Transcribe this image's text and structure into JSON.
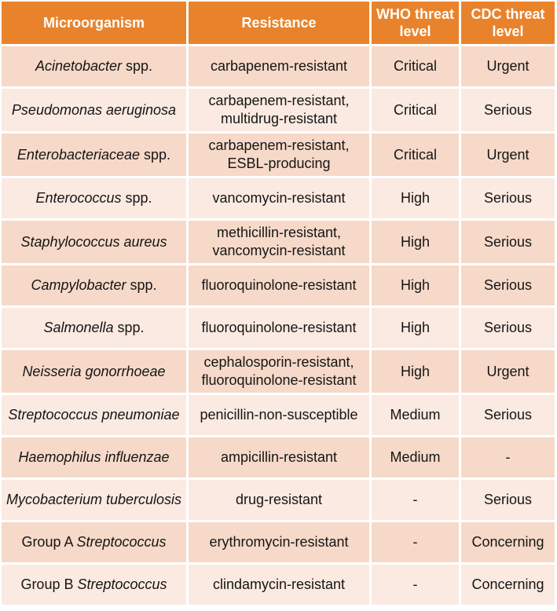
{
  "colors": {
    "header_bg": "#E8832C",
    "header_text": "#FFFFFF",
    "row_dark": "#F6D9C9",
    "row_light": "#FBEAE2",
    "gap": "#FFFFFF",
    "body_text": "#151515"
  },
  "chart_data": {
    "type": "table",
    "columns": [
      "Microorganism",
      "Resistance",
      "WHO threat level",
      "CDC threat level"
    ],
    "rows": [
      {
        "microorganism": {
          "prefix": "",
          "italic_part": "Acinetobacter",
          "suffix": " spp.",
          "text": "Acinetobacter spp."
        },
        "resistance_lines": [
          "carbapenem-resistant"
        ],
        "who_threat_level": "Critical",
        "cdc_threat_level": "Urgent",
        "shade": "dark"
      },
      {
        "microorganism": {
          "prefix": "",
          "italic_part": "Pseudomonas aeruginosa",
          "suffix": "",
          "text": "Pseudomonas aeruginosa"
        },
        "resistance_lines": [
          "carbapenem-resistant,",
          "multidrug-resistant"
        ],
        "who_threat_level": "Critical",
        "cdc_threat_level": "Serious",
        "shade": "light"
      },
      {
        "microorganism": {
          "prefix": "",
          "italic_part": "Enterobacteriaceae",
          "suffix": " spp.",
          "text": "Enterobacteriaceae spp."
        },
        "resistance_lines": [
          "carbapenem-resistant,",
          "ESBL-producing"
        ],
        "who_threat_level": "Critical",
        "cdc_threat_level": "Urgent",
        "shade": "dark"
      },
      {
        "microorganism": {
          "prefix": "",
          "italic_part": "Enterococcus",
          "suffix": " spp.",
          "text": "Enterococcus spp."
        },
        "resistance_lines": [
          "vancomycin-resistant"
        ],
        "who_threat_level": "High",
        "cdc_threat_level": "Serious",
        "shade": "light"
      },
      {
        "microorganism": {
          "prefix": "",
          "italic_part": "Staphylococcus aureus",
          "suffix": "",
          "text": "Staphylococcus aureus"
        },
        "resistance_lines": [
          "methicillin-resistant,",
          "vancomycin-resistant"
        ],
        "who_threat_level": "High",
        "cdc_threat_level": "Serious",
        "shade": "dark"
      },
      {
        "microorganism": {
          "prefix": "",
          "italic_part": "Campylobacter",
          "suffix": " spp.",
          "text": "Campylobacter spp."
        },
        "resistance_lines": [
          "fluoroquinolone-resistant"
        ],
        "who_threat_level": "High",
        "cdc_threat_level": "Serious",
        "shade": "dark"
      },
      {
        "microorganism": {
          "prefix": "",
          "italic_part": "Salmonella",
          "suffix": " spp.",
          "text": "Salmonella spp."
        },
        "resistance_lines": [
          "fluoroquinolone-resistant"
        ],
        "who_threat_level": "High",
        "cdc_threat_level": "Serious",
        "shade": "light"
      },
      {
        "microorganism": {
          "prefix": "",
          "italic_part": "Neisseria gonorrhoeae",
          "suffix": "",
          "text": "Neisseria gonorrhoeae"
        },
        "resistance_lines": [
          "cephalosporin-resistant,",
          "fluoroquinolone-resistant"
        ],
        "who_threat_level": "High",
        "cdc_threat_level": "Urgent",
        "shade": "dark"
      },
      {
        "microorganism": {
          "prefix": "",
          "italic_part": "Streptococcus pneumoniae",
          "suffix": "",
          "text": "Streptococcus pneumoniae"
        },
        "resistance_lines": [
          "penicillin-non-susceptible"
        ],
        "who_threat_level": "Medium",
        "cdc_threat_level": "Serious",
        "shade": "light"
      },
      {
        "microorganism": {
          "prefix": "",
          "italic_part": "Haemophilus influenzae",
          "suffix": "",
          "text": "Haemophilus influenzae"
        },
        "resistance_lines": [
          "ampicillin-resistant"
        ],
        "who_threat_level": "Medium",
        "cdc_threat_level": "-",
        "shade": "dark"
      },
      {
        "microorganism": {
          "prefix": "",
          "italic_part": "Mycobacterium tuberculosis",
          "suffix": "",
          "text": "Mycobacterium tuberculosis"
        },
        "resistance_lines": [
          "drug-resistant"
        ],
        "who_threat_level": "-",
        "cdc_threat_level": "Serious",
        "shade": "light"
      },
      {
        "microorganism": {
          "prefix": "Group A ",
          "italic_part": "Streptococcus",
          "suffix": "",
          "text": "Group A Streptococcus"
        },
        "resistance_lines": [
          "erythromycin-resistant"
        ],
        "who_threat_level": "-",
        "cdc_threat_level": "Concerning",
        "shade": "dark"
      },
      {
        "microorganism": {
          "prefix": "Group B ",
          "italic_part": "Streptococcus",
          "suffix": "",
          "text": "Group B Streptococcus"
        },
        "resistance_lines": [
          "clindamycin-resistant"
        ],
        "who_threat_level": "-",
        "cdc_threat_level": "Concerning",
        "shade": "light"
      }
    ]
  }
}
